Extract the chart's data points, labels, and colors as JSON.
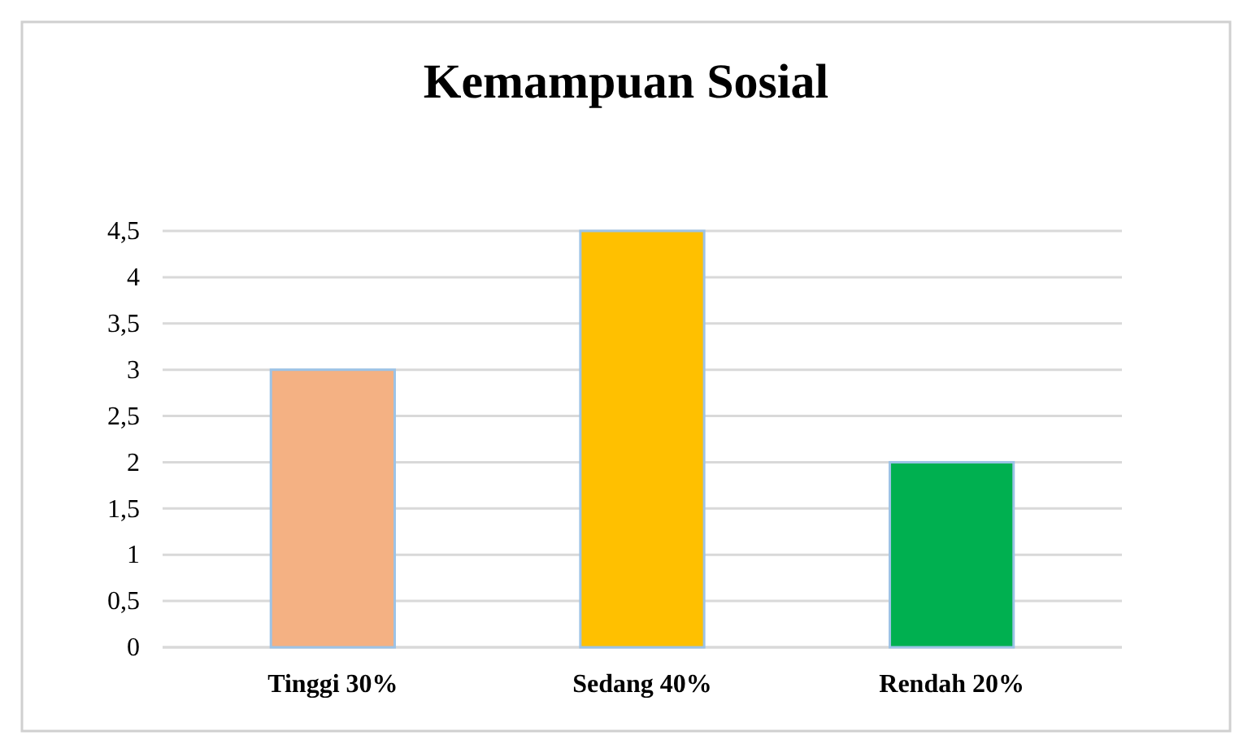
{
  "chart_data": {
    "type": "bar",
    "title": "Kemampuan Sosial",
    "categories": [
      "Tinggi 30%",
      "Sedang 40%",
      "Rendah 20%"
    ],
    "values": [
      3,
      4.5,
      2
    ],
    "colors": [
      "#f4b183",
      "#ffc000",
      "#00b050"
    ],
    "ylim": [
      0,
      4.5
    ],
    "yticks": [
      0,
      {
        "value": 0.5,
        "label": "0,5"
      },
      1,
      {
        "value": 1.5,
        "label": "1,5"
      },
      2,
      {
        "value": 2.5,
        "label": "2,5"
      },
      3,
      {
        "value": 3.5,
        "label": "3,5"
      },
      4,
      {
        "value": 4.5,
        "label": "4,5"
      }
    ],
    "grid": "y"
  }
}
